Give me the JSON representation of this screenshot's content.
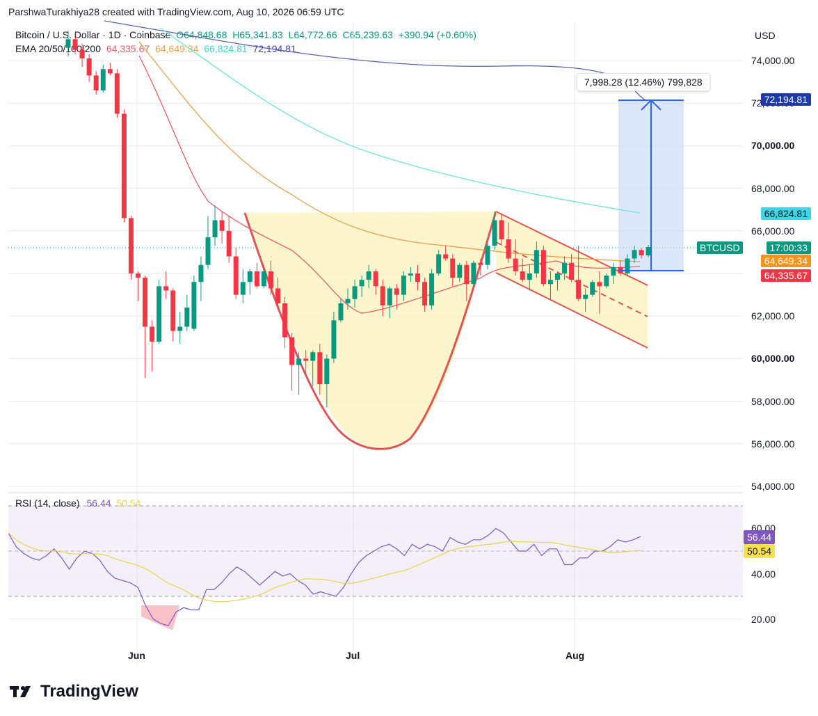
{
  "header": {
    "author_line": "ParshwaTurakhiya28 created with TradingView.com, Aug 10, 2026 06:59 UTC",
    "symbol": "Bitcoin / U.S. Dollar · 1D · Coinbase",
    "o": "O64,848.68",
    "h": "H65,341.83",
    "l": "L64,772.66",
    "c": "C65,239.63",
    "change": "+390.94 (+0.60%)",
    "ema_label": "EMA 20/50/100/200",
    "ema20": "64,335.67",
    "ema50": "64,649.34",
    "ema100": "66,824.81",
    "ema200": "72,194.81",
    "currency": "USD"
  },
  "colors": {
    "up": "#089981",
    "down": "#f23645",
    "ema20": "#e35d6a",
    "ema50": "#e8a04f",
    "ema100": "#6fe3d2",
    "ema200": "#5b5fb0",
    "pattern_fill": "#fdf3c2",
    "pattern_line": "#e05454",
    "measure": "#2962ff",
    "rsi_line": "#7e57c2",
    "rsi_ma": "#e8d24f"
  },
  "price_tags": {
    "ema200": "72,194.81",
    "ema100": "66,824.81",
    "btc_symbol": "BTCUSD",
    "countdown": "17:00:33",
    "ema50": "64,649.34",
    "ema20": "64,335.67"
  },
  "measure_text": "7,998.28 (12.46%) 799,828",
  "rsi": {
    "label": "RSI (14, close)",
    "value": "56.44",
    "ma_value": "50.54",
    "tag_value": "56.44",
    "tag_ma": "50.54",
    "ticks": [
      "60.00",
      "40.00",
      "20.00"
    ]
  },
  "footer": {
    "brand": "TradingView"
  },
  "chart_data": {
    "type": "candlestick",
    "title": "Bitcoin / U.S. Dollar · 1D · Coinbase",
    "y_ticks": [
      "74,000.00",
      "72,000.00",
      "70,000.00",
      "68,000.00",
      "66,000.00",
      "62,000.00",
      "60,000.00",
      "58,000.00",
      "56,000.00",
      "54,000.00"
    ],
    "y_bold": [
      "70,000.00",
      "60,000.00"
    ],
    "x_ticks": [
      "Jun",
      "Jul",
      "Aug"
    ],
    "ylim": [
      54000,
      75000
    ],
    "candles": [
      [
        74600,
        75400,
        74200,
        75000
      ],
      [
        75000,
        75300,
        74300,
        74500
      ],
      [
        74500,
        74800,
        73700,
        74100
      ],
      [
        74100,
        74300,
        73000,
        73300
      ],
      [
        73300,
        73500,
        72400,
        72600
      ],
      [
        72600,
        73800,
        72500,
        73600
      ],
      [
        73600,
        73900,
        73300,
        73400
      ],
      [
        73400,
        73600,
        71300,
        71500
      ],
      [
        71500,
        71700,
        66400,
        66600
      ],
      [
        66600,
        66700,
        63700,
        64000
      ],
      [
        64000,
        64100,
        62700,
        63800
      ],
      [
        63800,
        63900,
        59100,
        61500
      ],
      [
        61500,
        61800,
        59400,
        60800
      ],
      [
        60800,
        63700,
        60700,
        63400
      ],
      [
        63400,
        64100,
        62800,
        63200
      ],
      [
        63200,
        63300,
        60800,
        61300
      ],
      [
        61300,
        62200,
        60700,
        61500
      ],
      [
        61500,
        63000,
        61300,
        62400
      ],
      [
        61400,
        63900,
        61300,
        63600
      ],
      [
        63600,
        64800,
        62700,
        64400
      ],
      [
        64400,
        66700,
        64200,
        65700
      ],
      [
        65700,
        67200,
        65300,
        66500
      ],
      [
        66500,
        66900,
        65400,
        66000
      ],
      [
        66000,
        66700,
        64500,
        64800
      ],
      [
        64800,
        65200,
        62800,
        63000
      ],
      [
        63000,
        64200,
        62600,
        63600
      ],
      [
        63600,
        64200,
        63000,
        64100
      ],
      [
        64100,
        64500,
        63300,
        63400
      ],
      [
        63400,
        64400,
        63300,
        64100
      ],
      [
        64100,
        64600,
        63000,
        63300
      ],
      [
        63300,
        63800,
        62300,
        62600
      ],
      [
        62600,
        62900,
        60500,
        61000
      ],
      [
        61000,
        61200,
        58500,
        59700
      ],
      [
        59700,
        60300,
        58300,
        60000
      ],
      [
        60000,
        60400,
        59300,
        59900
      ],
      [
        59900,
        60400,
        58700,
        60300
      ],
      [
        60300,
        60700,
        58300,
        58800
      ],
      [
        58800,
        60200,
        57700,
        60000
      ],
      [
        60000,
        62200,
        59800,
        61800
      ],
      [
        61800,
        62800,
        61700,
        62600
      ],
      [
        62600,
        63300,
        62300,
        62800
      ],
      [
        62800,
        63700,
        62400,
        63400
      ],
      [
        63400,
        63900,
        62900,
        63700
      ],
      [
        63700,
        64400,
        63300,
        64100
      ],
      [
        64100,
        64200,
        63000,
        63400
      ],
      [
        63400,
        63700,
        62000,
        62500
      ],
      [
        62500,
        63400,
        61900,
        63300
      ],
      [
        63300,
        63500,
        62300,
        63000
      ],
      [
        63000,
        64100,
        62700,
        63900
      ],
      [
        63900,
        64300,
        63600,
        64000
      ],
      [
        64000,
        64400,
        63200,
        63600
      ],
      [
        63600,
        63800,
        62200,
        62500
      ],
      [
        62500,
        64200,
        62300,
        64000
      ],
      [
        64000,
        65100,
        63900,
        64900
      ],
      [
        64900,
        65300,
        64600,
        64700
      ],
      [
        64700,
        64900,
        63400,
        63800
      ],
      [
        63800,
        64500,
        63600,
        64400
      ],
      [
        64400,
        64600,
        62700,
        63500
      ],
      [
        63500,
        64600,
        63400,
        64500
      ],
      [
        64500,
        64700,
        63900,
        64400
      ],
      [
        64400,
        65400,
        64200,
        65300
      ],
      [
        65300,
        66900,
        65100,
        66500
      ],
      [
        66500,
        66800,
        65300,
        65600
      ],
      [
        65600,
        66400,
        64500,
        64700
      ],
      [
        64700,
        65600,
        63900,
        64100
      ],
      [
        64100,
        64700,
        63600,
        63700
      ],
      [
        63700,
        64400,
        63200,
        64000
      ],
      [
        64000,
        65500,
        63800,
        65100
      ],
      [
        65100,
        65300,
        63400,
        63500
      ],
      [
        63500,
        64100,
        62800,
        63700
      ],
      [
        63700,
        64100,
        63200,
        64000
      ],
      [
        64000,
        64800,
        63700,
        64500
      ],
      [
        64500,
        64900,
        63600,
        63700
      ],
      [
        63700,
        65300,
        62700,
        62800
      ],
      [
        62800,
        63300,
        62200,
        63000
      ],
      [
        63000,
        63700,
        62900,
        63600
      ],
      [
        63600,
        64100,
        62100,
        63400
      ],
      [
        63400,
        64000,
        63300,
        63900
      ],
      [
        63900,
        64500,
        63500,
        64300
      ],
      [
        64300,
        64600,
        63900,
        64000
      ],
      [
        64000,
        64900,
        63900,
        64700
      ],
      [
        64700,
        65300,
        64500,
        65100
      ],
      [
        65100,
        65200,
        64700,
        64850
      ],
      [
        64849,
        65342,
        64773,
        65240
      ]
    ],
    "ema_series": [
      {
        "name": "EMA 20",
        "end": 64335.67
      },
      {
        "name": "EMA 50",
        "end": 64649.34
      },
      {
        "name": "EMA 100",
        "end": 66824.81
      },
      {
        "name": "EMA 200",
        "end": 72194.81
      }
    ],
    "rsi_values": [
      58,
      52,
      49,
      47,
      46,
      48,
      51,
      47,
      42,
      47,
      50,
      49,
      46,
      41,
      38,
      37,
      36,
      34,
      26,
      20,
      18,
      17,
      23,
      25,
      24,
      24,
      33,
      33,
      36,
      40,
      43,
      41,
      38,
      35,
      38,
      41,
      39,
      40,
      37,
      35,
      31,
      32,
      31,
      30,
      34,
      40,
      45,
      48,
      50,
      52,
      53,
      51,
      48,
      53,
      51,
      53,
      52,
      50,
      56,
      54,
      53,
      55,
      55,
      57,
      60,
      58,
      54,
      50,
      50,
      53,
      48,
      51,
      51,
      44,
      44,
      47,
      47,
      50,
      50,
      52,
      55,
      54,
      55,
      56.44
    ]
  }
}
